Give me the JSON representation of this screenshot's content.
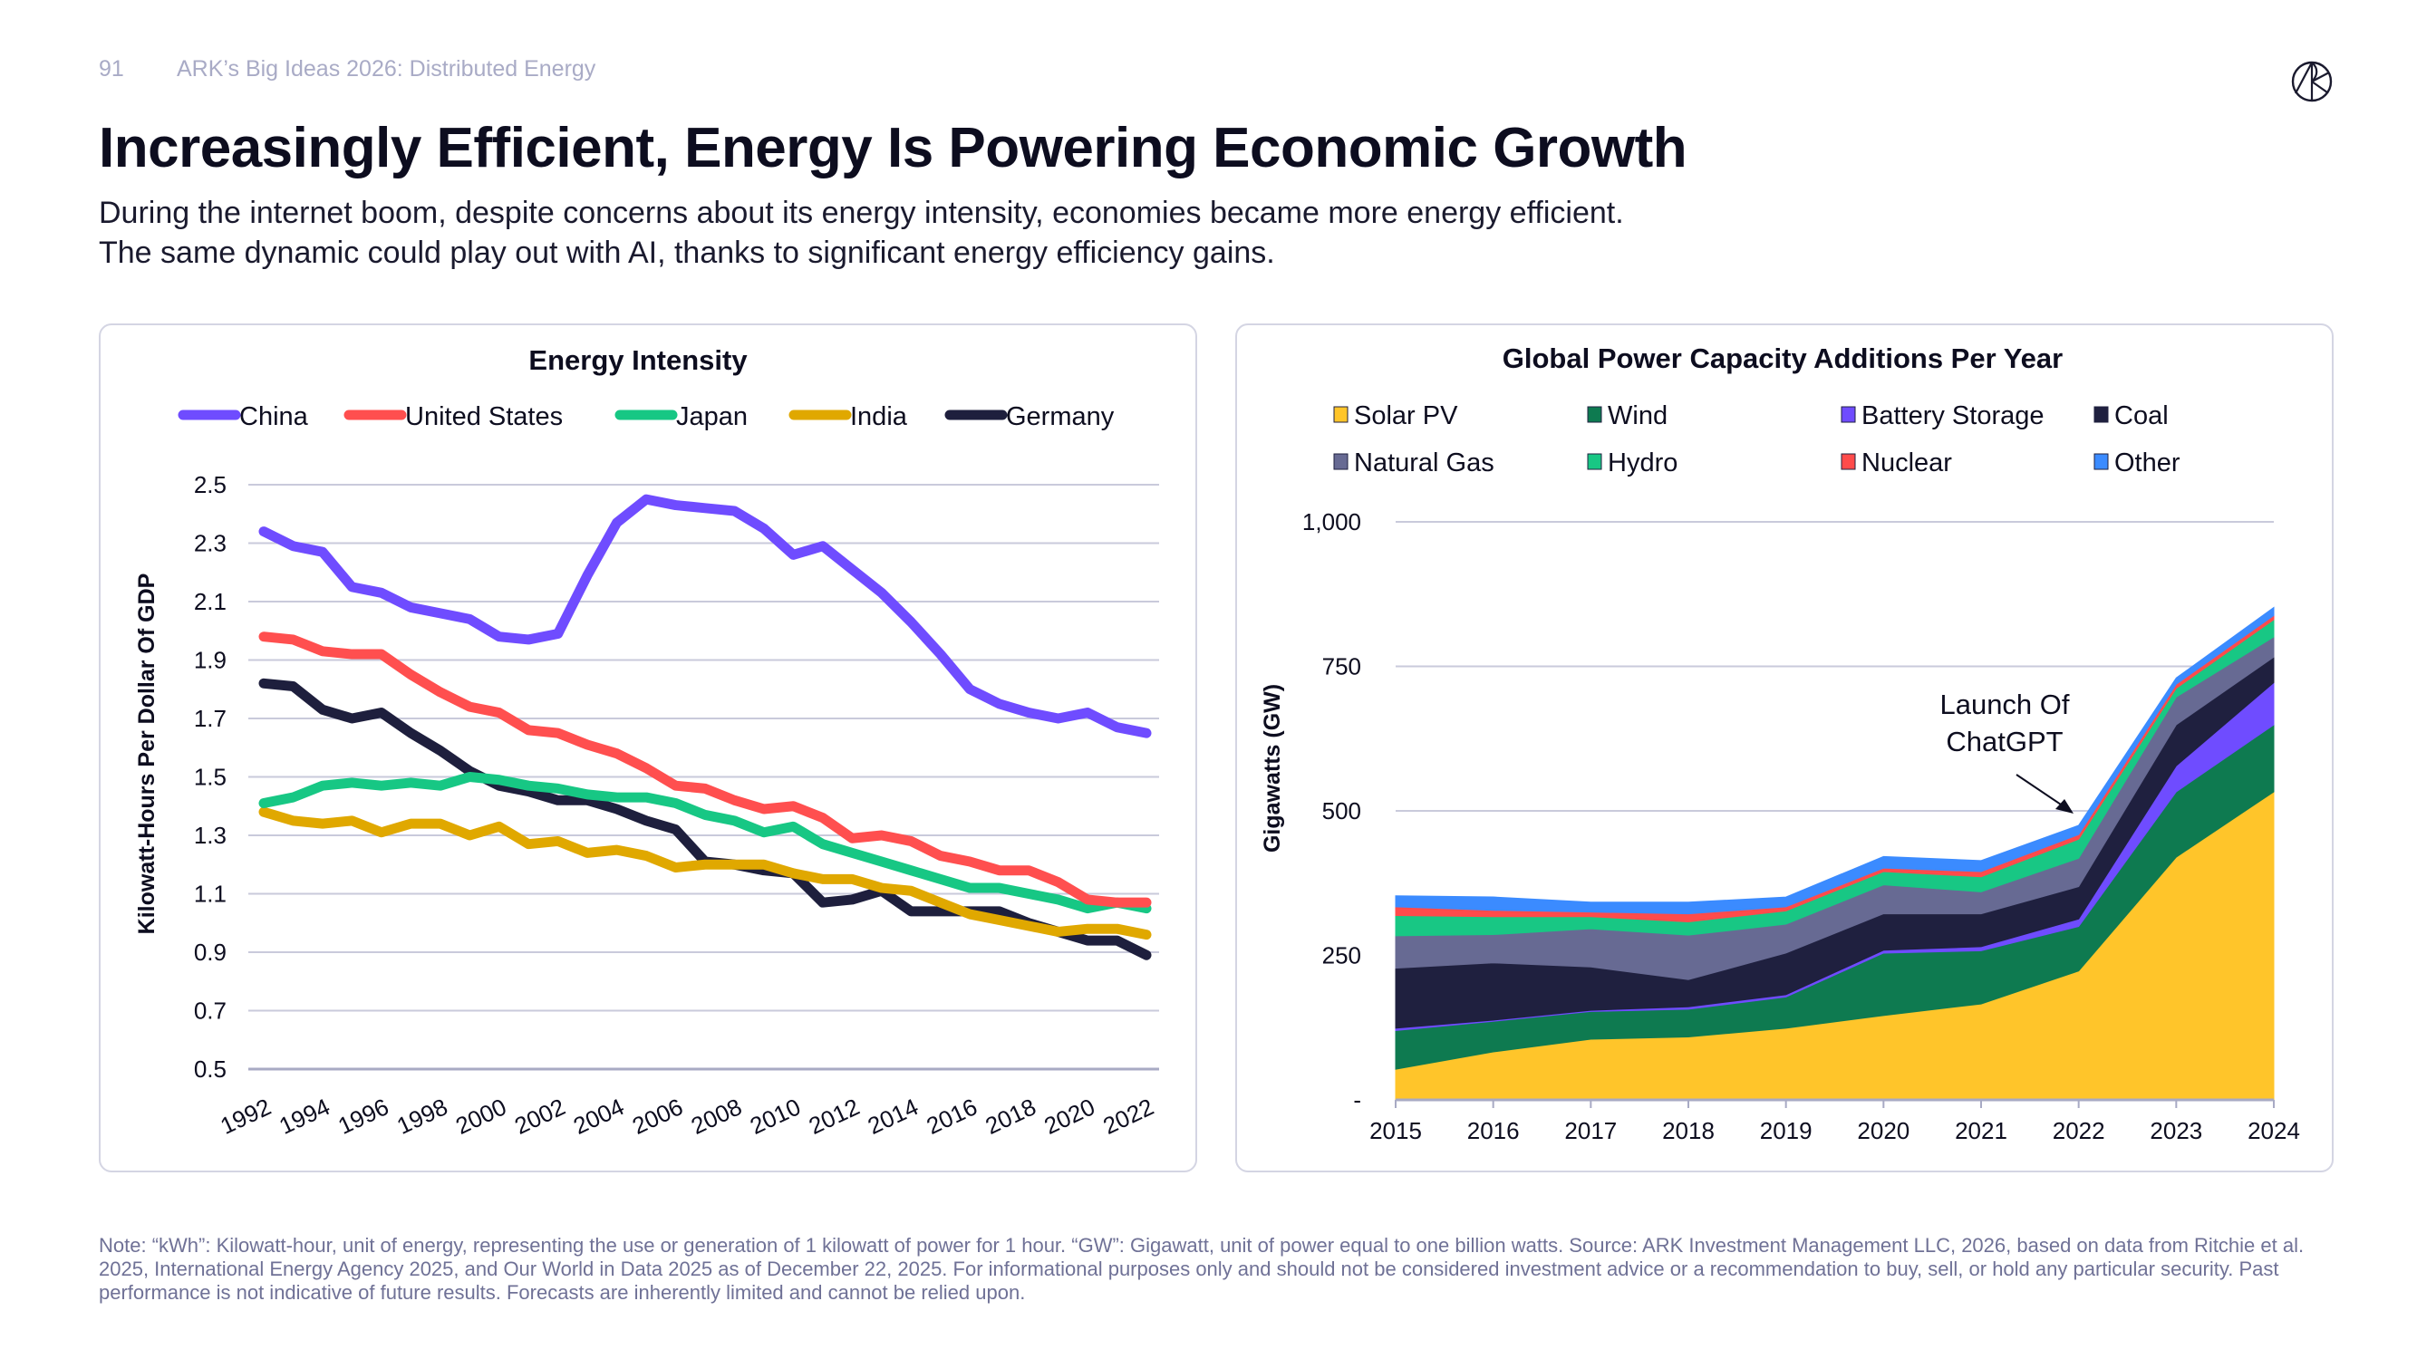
{
  "header": {
    "page_number": "91",
    "running_title": "ARK’s Big Ideas 2026: Distributed Energy",
    "title": "Increasingly Efficient, Energy Is Powering Economic Growth",
    "subtitle_line1": "During the internet boom, despite concerns about its energy intensity, economies became more energy efficient.",
    "subtitle_line2": "The same dynamic could play out with AI, thanks to significant energy efficiency gains.",
    "logo_text": "ARK"
  },
  "footnote": "Note: “kWh”: Kilowatt-hour, unit of energy, representing the use or generation of 1 kilowatt of power for 1 hour. “GW”: Gigawatt, unit of power equal to one billion watts. Source: ARK Investment Management LLC, 2026, based on data from Ritchie et al. 2025, International Energy Agency 2025, and Our World in Data 2025 as of December 22, 2025. For informational purposes only and should not be considered investment advice or a recommendation to buy, sell, or hold any particular security. Past performance is not indicative of future results. Forecasts are inherently limited and cannot be relied upon.",
  "chart_data": [
    {
      "type": "line",
      "title": "Energy Intensity",
      "ylabel": "Kilowatt-Hours Per Dollar Of GDP",
      "xlabel": "",
      "ylim": [
        0.5,
        2.5
      ],
      "yticks": [
        "2.5",
        "2.3",
        "2.1",
        "1.9",
        "1.7",
        "1.5",
        "1.3",
        "1.1",
        "0.9",
        "0.7",
        "0.5"
      ],
      "xticks": [
        "1992",
        "1994",
        "1996",
        "1998",
        "2000",
        "2002",
        "2004",
        "2006",
        "2008",
        "2010",
        "2012",
        "2014",
        "2016",
        "2018",
        "2020",
        "2022"
      ],
      "grid": true,
      "legend_position": "top",
      "x": [
        1992,
        1993,
        1994,
        1995,
        1996,
        1997,
        1998,
        1999,
        2000,
        2001,
        2002,
        2003,
        2004,
        2005,
        2006,
        2007,
        2008,
        2009,
        2010,
        2011,
        2012,
        2013,
        2014,
        2015,
        2016,
        2017,
        2018,
        2019,
        2020,
        2021,
        2022
      ],
      "series": [
        {
          "name": "China",
          "color": "#6F4CFF",
          "values": [
            2.34,
            2.29,
            2.27,
            2.15,
            2.13,
            2.08,
            2.06,
            2.04,
            1.98,
            1.97,
            1.99,
            2.19,
            2.37,
            2.45,
            2.43,
            2.42,
            2.41,
            2.35,
            2.26,
            2.29,
            2.21,
            2.13,
            2.03,
            1.92,
            1.8,
            1.75,
            1.72,
            1.7,
            1.72,
            1.67,
            1.65
          ]
        },
        {
          "name": "United States",
          "color": "#FF4F4F",
          "values": [
            1.98,
            1.97,
            1.93,
            1.92,
            1.92,
            1.85,
            1.79,
            1.74,
            1.72,
            1.66,
            1.65,
            1.61,
            1.58,
            1.53,
            1.47,
            1.46,
            1.42,
            1.39,
            1.4,
            1.36,
            1.29,
            1.3,
            1.28,
            1.23,
            1.21,
            1.18,
            1.18,
            1.14,
            1.08,
            1.07,
            1.07
          ]
        },
        {
          "name": "Japan",
          "color": "#17C784",
          "values": [
            1.41,
            1.43,
            1.47,
            1.48,
            1.47,
            1.48,
            1.47,
            1.5,
            1.49,
            1.47,
            1.46,
            1.44,
            1.43,
            1.43,
            1.41,
            1.37,
            1.35,
            1.31,
            1.33,
            1.27,
            1.24,
            1.21,
            1.18,
            1.15,
            1.12,
            1.12,
            1.1,
            1.08,
            1.05,
            1.07,
            1.05
          ]
        },
        {
          "name": "India",
          "color": "#E0A800",
          "values": [
            1.38,
            1.35,
            1.34,
            1.35,
            1.31,
            1.34,
            1.34,
            1.3,
            1.33,
            1.27,
            1.28,
            1.24,
            1.25,
            1.23,
            1.19,
            1.2,
            1.2,
            1.2,
            1.17,
            1.15,
            1.15,
            1.12,
            1.11,
            1.07,
            1.03,
            1.01,
            0.99,
            0.97,
            0.98,
            0.98,
            0.96
          ]
        },
        {
          "name": "Germany",
          "color": "#1E1F3D",
          "values": [
            1.82,
            1.81,
            1.73,
            1.7,
            1.72,
            1.65,
            1.59,
            1.52,
            1.47,
            1.45,
            1.42,
            1.42,
            1.39,
            1.35,
            1.32,
            1.21,
            1.2,
            1.18,
            1.17,
            1.07,
            1.08,
            1.11,
            1.04,
            1.04,
            1.04,
            1.04,
            1.0,
            0.97,
            0.94,
            0.94,
            0.89
          ]
        }
      ]
    },
    {
      "type": "area",
      "stacked": true,
      "title": "Global Power Capacity Additions Per Year",
      "ylabel": "Gigawatts (GW)",
      "xlabel": "",
      "ylim": [
        0,
        1000
      ],
      "yticks": [
        {
          "value": 1000,
          "label": "1,000"
        },
        {
          "value": 750,
          "label": "750"
        },
        {
          "value": 500,
          "label": "500"
        },
        {
          "value": 250,
          "label": "250"
        },
        {
          "value": 0,
          "label": "-"
        }
      ],
      "grid": true,
      "legend_position": "top",
      "categories": [
        "2015",
        "2016",
        "2017",
        "2018",
        "2019",
        "2020",
        "2021",
        "2022",
        "2023",
        "2024"
      ],
      "annotation": {
        "line1": "Launch Of",
        "line2": "ChatGPT",
        "x": "2022"
      },
      "series": [
        {
          "name": "Solar PV",
          "color": "#FFC52A",
          "values": [
            53,
            83,
            105,
            109,
            124,
            146,
            166,
            223,
            420,
            533
          ]
        },
        {
          "name": "Wind",
          "color": "#0E7A50",
          "values": [
            67,
            53,
            48,
            48,
            54,
            108,
            92,
            77,
            113,
            116
          ]
        },
        {
          "name": "Battery Storage",
          "color": "#6F4CFF",
          "values": [
            4,
            2,
            2,
            4,
            4,
            5,
            7,
            13,
            45,
            73
          ]
        },
        {
          "name": "Coal",
          "color": "#1F203F",
          "values": [
            104,
            99,
            75,
            47,
            72,
            63,
            57,
            56,
            71,
            44
          ]
        },
        {
          "name": "Natural Gas",
          "color": "#676A93",
          "values": [
            56,
            49,
            66,
            77,
            50,
            50,
            38,
            49,
            48,
            35
          ]
        },
        {
          "name": "Hydro",
          "color": "#18C784",
          "values": [
            35,
            31,
            21,
            23,
            23,
            23,
            26,
            33,
            15,
            30
          ]
        },
        {
          "name": "Nuclear",
          "color": "#FF4B4B",
          "values": [
            15,
            11,
            8,
            14,
            7,
            6,
            9,
            8,
            7,
            7
          ]
        },
        {
          "name": "Other",
          "color": "#3B8BFF",
          "values": [
            19,
            23,
            17,
            20,
            17,
            20,
            19,
            16,
            11,
            14
          ]
        }
      ]
    }
  ]
}
